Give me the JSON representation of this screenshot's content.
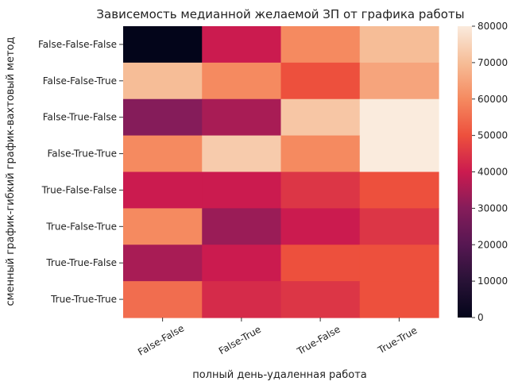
{
  "chart_data": {
    "type": "heatmap",
    "title": "Зависемость медианной желаемой ЗП от графика работы",
    "xlabel": "полный день-удаленная работа",
    "ylabel": "сменный график-гибкий график-вахтовый метод",
    "x_categories": [
      "False-False",
      "False-True",
      "True-False",
      "True-True"
    ],
    "y_categories": [
      "False-False-False",
      "False-False-True",
      "False-True-False",
      "False-True-True",
      "True-False-False",
      "True-False-True",
      "True-True-False",
      "True-True-True"
    ],
    "values": [
      [
        0,
        40000,
        60000,
        70000
      ],
      [
        70000,
        60000,
        50000,
        65000
      ],
      [
        30000,
        35000,
        72000,
        80000
      ],
      [
        60000,
        73000,
        60000,
        80000
      ],
      [
        40000,
        40000,
        45000,
        50000
      ],
      [
        60000,
        33000,
        40000,
        45000
      ],
      [
        35000,
        40000,
        50000,
        50000
      ],
      [
        55000,
        43000,
        45000,
        50000
      ]
    ],
    "colorbar": {
      "range": [
        0,
        80000
      ],
      "ticks": [
        "0",
        "10000",
        "20000",
        "30000",
        "40000",
        "50000",
        "60000",
        "70000",
        "80000"
      ],
      "colormap": "rocket"
    },
    "grid": false,
    "legend": "colorbar-right"
  }
}
